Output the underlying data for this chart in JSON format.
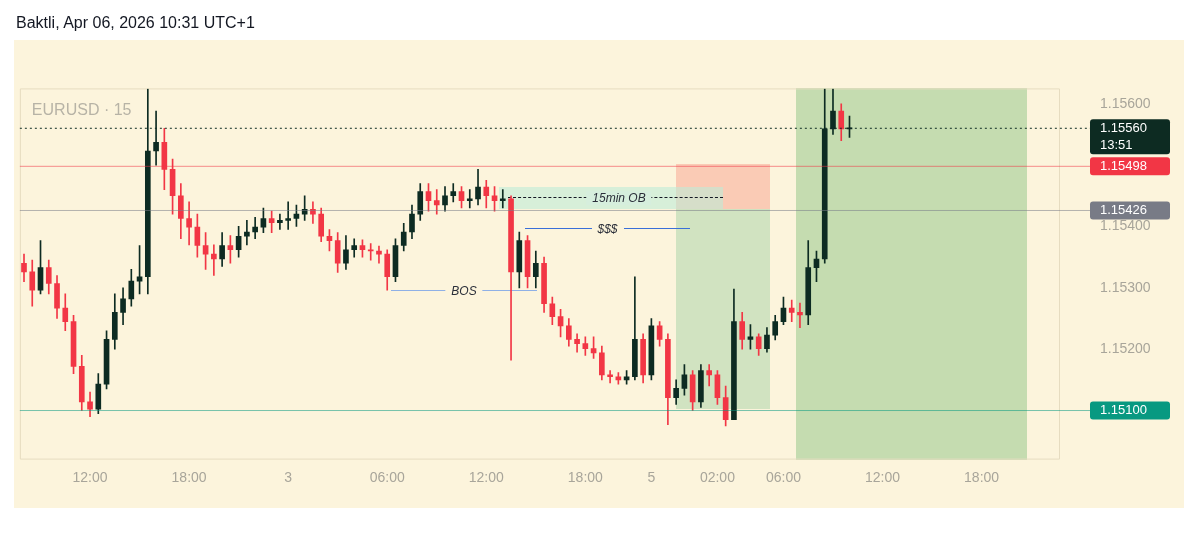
{
  "chart_data": {
    "type": "candlestick",
    "title": "Baktli, Apr 06, 2026 10:31 UTC+1",
    "subtitle": "EURUSD · 15",
    "categories": [
      null,
      null,
      null,
      null,
      null,
      null,
      null,
      null,
      "12:00",
      null,
      null,
      null,
      null,
      null,
      null,
      null,
      null,
      null,
      null,
      null,
      "18:00",
      null,
      null,
      null,
      null,
      null,
      null,
      null,
      null,
      null,
      null,
      null,
      "3",
      null,
      null,
      null,
      null,
      null,
      null,
      null,
      null,
      null,
      null,
      null,
      "06:00",
      null,
      null,
      null,
      null,
      null,
      null,
      null,
      null,
      null,
      null,
      null,
      "12:00",
      null,
      null,
      null,
      null,
      null,
      null,
      null,
      null,
      null,
      null,
      null,
      "18:00",
      null,
      null,
      null,
      null,
      null,
      null,
      null,
      "5",
      null,
      null,
      null,
      null,
      null,
      null,
      null,
      "02:00",
      null,
      null,
      null,
      null,
      null,
      null,
      null,
      "06:00",
      null,
      null,
      null,
      null,
      null,
      null,
      null,
      null,
      null,
      null,
      null,
      "12:00",
      null,
      null,
      null,
      null,
      null,
      null,
      null,
      null,
      null,
      null,
      null,
      "18:00",
      null,
      null,
      null,
      null,
      null,
      null,
      null,
      null,
      null
    ],
    "ohlc": [
      [
        1.1534,
        1.15355,
        1.1531,
        1.15326
      ],
      [
        1.15326,
        1.15345,
        1.1527,
        1.15296
      ],
      [
        1.15296,
        1.15377,
        1.1529,
        1.15333
      ],
      [
        1.15333,
        1.15345,
        1.1529,
        1.15307
      ],
      [
        1.15307,
        1.1532,
        1.1525,
        1.15267
      ],
      [
        1.15267,
        1.1529,
        1.1523,
        1.15245
      ],
      [
        1.15245,
        1.15255,
        1.1516,
        1.15172
      ],
      [
        1.15172,
        1.1519,
        1.151,
        1.15114
      ],
      [
        1.15114,
        1.1513,
        1.1509,
        1.15102
      ],
      [
        1.15102,
        1.1516,
        1.15095,
        1.15143
      ],
      [
        1.15143,
        1.1523,
        1.15135,
        1.15216
      ],
      [
        1.15216,
        1.1529,
        1.152,
        1.1526
      ],
      [
        1.1526,
        1.153,
        1.1524,
        1.15282
      ],
      [
        1.15282,
        1.1533,
        1.1527,
        1.15311
      ],
      [
        1.15311,
        1.15369,
        1.1529,
        1.15318
      ],
      [
        1.15318,
        1.15624,
        1.1529,
        1.15523
      ],
      [
        1.15523,
        1.15588,
        1.155,
        1.15537
      ],
      [
        1.15537,
        1.1556,
        1.1546,
        1.15493
      ],
      [
        1.15493,
        1.1551,
        1.1542,
        1.1545
      ],
      [
        1.1545,
        1.1547,
        1.1538,
        1.15413
      ],
      [
        1.15413,
        1.1544,
        1.1537,
        1.15399
      ],
      [
        1.15399,
        1.1542,
        1.1535,
        1.15369
      ],
      [
        1.15369,
        1.1539,
        1.1533,
        1.15355
      ],
      [
        1.15355,
        1.1537,
        1.1532,
        1.15347
      ],
      [
        1.15347,
        1.1539,
        1.15335,
        1.15369
      ],
      [
        1.15369,
        1.15385,
        1.1534,
        1.15362
      ],
      [
        1.15362,
        1.154,
        1.1535,
        1.15384
      ],
      [
        1.15384,
        1.1541,
        1.1537,
        1.15391
      ],
      [
        1.15391,
        1.15415,
        1.1538,
        1.15399
      ],
      [
        1.15399,
        1.1543,
        1.1539,
        1.15413
      ],
      [
        1.15413,
        1.15425,
        1.1539,
        1.15406
      ],
      [
        1.15406,
        1.1542,
        1.15395,
        1.1541
      ],
      [
        1.1541,
        1.1544,
        1.15395,
        1.15413
      ],
      [
        1.15413,
        1.15435,
        1.154,
        1.1542
      ],
      [
        1.1542,
        1.1545,
        1.1541,
        1.15428
      ],
      [
        1.15428,
        1.1544,
        1.15405,
        1.1542
      ],
      [
        1.1542,
        1.1543,
        1.15375,
        1.15384
      ],
      [
        1.15384,
        1.15395,
        1.1536,
        1.15377
      ],
      [
        1.15377,
        1.1539,
        1.15325,
        1.1534
      ],
      [
        1.1534,
        1.15385,
        1.1533,
        1.15362
      ],
      [
        1.15362,
        1.1538,
        1.1535,
        1.15369
      ],
      [
        1.15369,
        1.15378,
        1.1535,
        1.15362
      ],
      [
        1.15362,
        1.15372,
        1.15345,
        1.1536
      ],
      [
        1.1536,
        1.15368,
        1.1534,
        1.15355
      ],
      [
        1.15355,
        1.15362,
        1.15296,
        1.15318
      ],
      [
        1.15318,
        1.1538,
        1.1531,
        1.15369
      ],
      [
        1.15369,
        1.15405,
        1.1536,
        1.15391
      ],
      [
        1.15391,
        1.15435,
        1.1538,
        1.1542
      ],
      [
        1.1542,
        1.1547,
        1.1541,
        1.15457
      ],
      [
        1.15457,
        1.1547,
        1.15425,
        1.15442
      ],
      [
        1.15442,
        1.1546,
        1.1542,
        1.15435
      ],
      [
        1.15435,
        1.15465,
        1.15425,
        1.1545
      ],
      [
        1.1545,
        1.1547,
        1.1544,
        1.15457
      ],
      [
        1.15457,
        1.15465,
        1.1543,
        1.15442
      ],
      [
        1.15442,
        1.1546,
        1.1543,
        1.15445
      ],
      [
        1.15445,
        1.15493,
        1.15435,
        1.15464
      ],
      [
        1.15464,
        1.15475,
        1.1543,
        1.1545
      ],
      [
        1.1545,
        1.15465,
        1.15425,
        1.15442
      ],
      [
        1.15442,
        1.1546,
        1.1543,
        1.15445
      ],
      [
        1.15445,
        1.1545,
        1.15182,
        1.15326
      ],
      [
        1.15326,
        1.15391,
        1.153,
        1.15377
      ],
      [
        1.15377,
        1.15385,
        1.153,
        1.15318
      ],
      [
        1.15318,
        1.1536,
        1.153,
        1.1534
      ],
      [
        1.1534,
        1.1535,
        1.1526,
        1.15274
      ],
      [
        1.15274,
        1.15285,
        1.1524,
        1.15253
      ],
      [
        1.15253,
        1.15265,
        1.1522,
        1.15238
      ],
      [
        1.15238,
        1.1525,
        1.15205,
        1.15216
      ],
      [
        1.15216,
        1.15225,
        1.15195,
        1.15209
      ],
      [
        1.15209,
        1.1522,
        1.1519,
        1.15201
      ],
      [
        1.15201,
        1.1522,
        1.15185,
        1.15194
      ],
      [
        1.15194,
        1.15205,
        1.1515,
        1.15158
      ],
      [
        1.15158,
        1.15165,
        1.15145,
        1.15155
      ],
      [
        1.15155,
        1.15162,
        1.15143,
        1.1515
      ],
      [
        1.1515,
        1.15165,
        1.15143,
        1.15155
      ],
      [
        1.15155,
        1.15318,
        1.1515,
        1.15216
      ],
      [
        1.15216,
        1.15225,
        1.15145,
        1.15158
      ],
      [
        1.15158,
        1.1525,
        1.1515,
        1.15238
      ],
      [
        1.15238,
        1.15245,
        1.15205,
        1.15216
      ],
      [
        1.15216,
        1.15225,
        1.15077,
        1.15121
      ],
      [
        1.15121,
        1.1515,
        1.1511,
        1.15136
      ],
      [
        1.15136,
        1.15175,
        1.15125,
        1.15158
      ],
      [
        1.15158,
        1.15165,
        1.151,
        1.15114
      ],
      [
        1.15114,
        1.15175,
        1.15105,
        1.15165
      ],
      [
        1.15165,
        1.15175,
        1.1514,
        1.15158
      ],
      [
        1.15158,
        1.15165,
        1.1511,
        1.15121
      ],
      [
        1.15121,
        1.1514,
        1.15075,
        1.15085
      ],
      [
        1.15085,
        1.15298,
        1.15085,
        1.15245
      ],
      [
        1.15245,
        1.1526,
        1.152,
        1.15216
      ],
      [
        1.15216,
        1.1524,
        1.152,
        1.1522
      ],
      [
        1.1522,
        1.15225,
        1.1519,
        1.15201
      ],
      [
        1.15201,
        1.15235,
        1.15195,
        1.15223
      ],
      [
        1.15223,
        1.15255,
        1.15215,
        1.15245
      ],
      [
        1.15245,
        1.15285,
        1.1524,
        1.15267
      ],
      [
        1.15267,
        1.1528,
        1.15245,
        1.1526
      ],
      [
        1.1526,
        1.15275,
        1.15235,
        1.15256
      ],
      [
        1.15256,
        1.15377,
        1.1524,
        1.15333
      ],
      [
        1.15333,
        1.1536,
        1.1531,
        1.15347
      ],
      [
        1.15347,
        1.15624,
        1.1534,
        1.15559
      ],
      [
        1.15559,
        1.15624,
        1.1555,
        1.15588
      ],
      [
        1.15588,
        1.156,
        1.1554,
        1.15559
      ],
      [
        1.15559,
        1.1558,
        1.15545,
        1.1556
      ],
      null,
      null,
      null,
      null,
      null,
      null,
      null,
      null,
      null,
      null,
      null,
      null,
      null,
      null,
      null,
      null,
      null,
      null,
      null,
      null,
      null,
      null,
      null,
      null,
      null
    ],
    "ylim": [
      1.1502,
      1.15625
    ],
    "yticks": [
      {
        "value": 1.152,
        "label": "1.15200"
      },
      {
        "value": 1.153,
        "label": "1.15300"
      },
      {
        "value": 1.154,
        "label": "1.15400"
      },
      {
        "value": 1.156,
        "label": "1.15600"
      }
    ],
    "ref_lines": [
      {
        "axis": "y",
        "value": 1.1556,
        "label": "1.15560",
        "color": "#0d2b22",
        "line_style": "dotted"
      },
      {
        "axis": "y",
        "value": 1.15498,
        "label": "1.15498",
        "color": "#f23645"
      },
      {
        "axis": "y",
        "value": 1.15426,
        "label": "1.15426",
        "color": "#787b86"
      },
      {
        "axis": "y",
        "value": 1.151,
        "label": "1.15100",
        "color": "#089981"
      }
    ],
    "annotations": [
      "15min OB",
      "$$$",
      "BOS",
      "13:51"
    ]
  }
}
